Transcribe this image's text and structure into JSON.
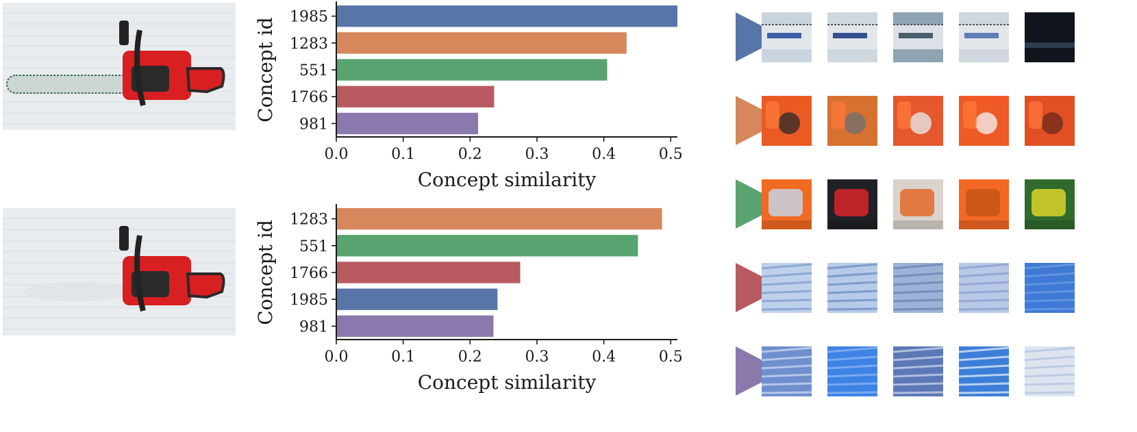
{
  "palette": {
    "1985": "#5875a8",
    "1283": "#d6875c",
    "551": "#58a36f",
    "1766": "#b95a61",
    "981": "#8979ac"
  },
  "photos": [
    {
      "name": "chainsaw-full-image-icon",
      "variant": "with-bar"
    },
    {
      "name": "chainsaw-bar-removed-image-icon",
      "variant": "without-bar"
    }
  ],
  "chart_data": [
    {
      "type": "bar",
      "orientation": "horizontal",
      "categories": [
        "1985",
        "1283",
        "551",
        "1766",
        "981"
      ],
      "values": [
        0.51,
        0.434,
        0.405,
        0.236,
        0.212
      ],
      "xlabel": "Concept similarity",
      "ylabel": "Concept id",
      "xticks": [
        "0.0",
        "0.1",
        "0.2",
        "0.3",
        "0.4",
        "0.5"
      ],
      "xlim": [
        0,
        0.51
      ],
      "grid": false
    },
    {
      "type": "bar",
      "orientation": "horizontal",
      "categories": [
        "1283",
        "551",
        "1766",
        "1985",
        "981"
      ],
      "values": [
        0.487,
        0.451,
        0.275,
        0.241,
        0.235
      ],
      "xlabel": "Concept similarity",
      "ylabel": "Concept id",
      "xticks": [
        "0.0",
        "0.1",
        "0.2",
        "0.3",
        "0.4",
        "0.5"
      ],
      "xlim": [
        0,
        0.51
      ],
      "grid": false
    }
  ],
  "concepts": [
    {
      "id": "1985",
      "marker_icon": "blue-triangle-marker-icon",
      "patches": [
        {
          "bg": "#c9d4de",
          "accent": "#3e5fa6",
          "kind": "chain-bar"
        },
        {
          "bg": "#d0d8df",
          "accent": "#33508f",
          "kind": "chain-bar"
        },
        {
          "bg": "#8ea4b3",
          "accent": "#4b5e6c",
          "kind": "chain-bar"
        },
        {
          "bg": "#cfd6dd",
          "accent": "#5f7eb8",
          "kind": "chain-bar"
        },
        {
          "bg": "#0f141d",
          "accent": "#2d3b4d",
          "kind": "dark"
        }
      ]
    },
    {
      "id": "1283",
      "marker_icon": "orange-triangle-marker-icon",
      "patches": [
        {
          "bg": "#ea5b24",
          "accent": "#2a2a2a",
          "kind": "orange"
        },
        {
          "bg": "#d7712f",
          "accent": "#6d6f74",
          "kind": "orange"
        },
        {
          "bg": "#e3582c",
          "accent": "#e8eef3",
          "kind": "orange"
        },
        {
          "bg": "#f05a26",
          "accent": "#f4f4f4",
          "kind": "orange"
        },
        {
          "bg": "#e14f22",
          "accent": "#6b2a1f",
          "kind": "orange"
        }
      ]
    },
    {
      "id": "551",
      "marker_icon": "green-triangle-marker-icon",
      "patches": [
        {
          "bg": "#f16a22",
          "accent": "#c5d2e2",
          "kind": "plastic"
        },
        {
          "bg": "#202126",
          "accent": "#d8242c",
          "kind": "plastic"
        },
        {
          "bg": "#d9d3cc",
          "accent": "#e26b2a",
          "kind": "plastic"
        },
        {
          "bg": "#f26824",
          "accent": "#c95318",
          "kind": "plastic"
        },
        {
          "bg": "#2f6b2c",
          "accent": "#d9d42a",
          "kind": "plastic"
        }
      ]
    },
    {
      "id": "1766",
      "marker_icon": "red-triangle-marker-icon",
      "patches": [
        {
          "bg": "#bfd0e9",
          "accent": "#7f9fcf",
          "kind": "snow"
        },
        {
          "bg": "#b7cbe8",
          "accent": "#6f90c4",
          "kind": "snow"
        },
        {
          "bg": "#9bb2d6",
          "accent": "#6a84b4",
          "kind": "snow"
        },
        {
          "bg": "#b9c8e6",
          "accent": "#8a9fd1",
          "kind": "snow"
        },
        {
          "bg": "#3f7ad6",
          "accent": "#6d9be3",
          "kind": "snow"
        }
      ]
    },
    {
      "id": "981",
      "marker_icon": "purple-triangle-marker-icon",
      "patches": [
        {
          "bg": "#6f8fcf",
          "accent": "#c7d5ef",
          "kind": "snow"
        },
        {
          "bg": "#3d83e6",
          "accent": "#8ab4f1",
          "kind": "snow"
        },
        {
          "bg": "#5c78b6",
          "accent": "#c4d1ea",
          "kind": "snow"
        },
        {
          "bg": "#3b7fd8",
          "accent": "#d9e6f7",
          "kind": "snow"
        },
        {
          "bg": "#dde4ef",
          "accent": "#b4c6e2",
          "kind": "snow"
        }
      ]
    }
  ]
}
